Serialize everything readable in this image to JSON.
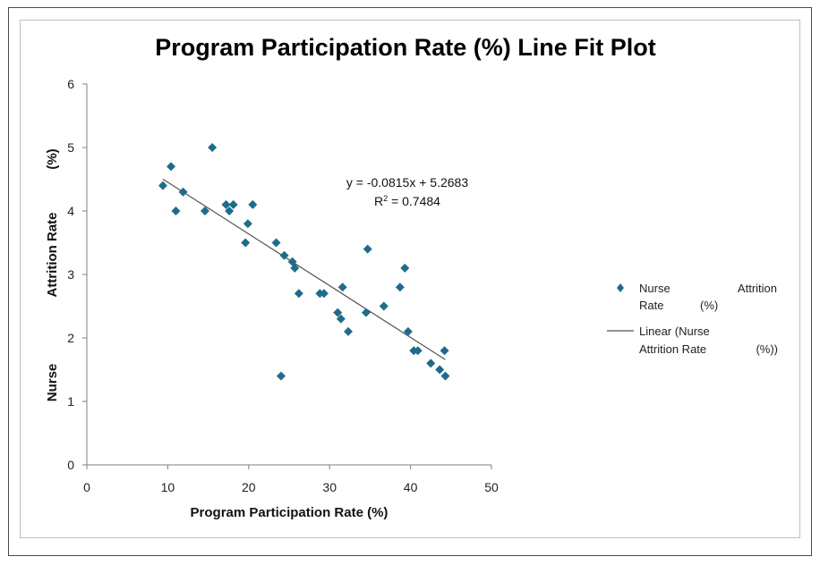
{
  "chart_data": {
    "type": "scatter",
    "title": "Program Participation Rate (%) Line Fit  Plot",
    "xlabel": "Program Participation Rate (%)",
    "ylabel_parts": [
      "Nurse",
      "Attrition Rate",
      "(%)"
    ],
    "xlim": [
      0,
      50
    ],
    "ylim": [
      0,
      6
    ],
    "x_ticks": [
      0,
      10,
      20,
      30,
      40,
      50
    ],
    "y_ticks": [
      0,
      1,
      2,
      3,
      4,
      5,
      6
    ],
    "grid": false,
    "legend_position": "right",
    "series": [
      {
        "name_parts": [
          "Nurse",
          "Attrition",
          "Rate",
          "(%)"
        ],
        "color": "#1f6b8c",
        "marker": "diamond",
        "points": [
          [
            9.4,
            4.4
          ],
          [
            10.4,
            4.7
          ],
          [
            11.0,
            4.0
          ],
          [
            11.9,
            4.3
          ],
          [
            14.6,
            4.0
          ],
          [
            15.5,
            5.0
          ],
          [
            17.2,
            4.1
          ],
          [
            17.6,
            4.0
          ],
          [
            18.1,
            4.1
          ],
          [
            19.6,
            3.5
          ],
          [
            19.9,
            3.8
          ],
          [
            20.5,
            4.1
          ],
          [
            23.4,
            3.5
          ],
          [
            24.0,
            1.4
          ],
          [
            24.4,
            3.3
          ],
          [
            25.4,
            3.2
          ],
          [
            25.7,
            3.1
          ],
          [
            26.2,
            2.7
          ],
          [
            28.8,
            2.7
          ],
          [
            29.3,
            2.7
          ],
          [
            31.0,
            2.4
          ],
          [
            31.4,
            2.3
          ],
          [
            31.6,
            2.8
          ],
          [
            32.3,
            2.1
          ],
          [
            34.5,
            2.4
          ],
          [
            34.7,
            3.4
          ],
          [
            36.7,
            2.5
          ],
          [
            38.7,
            2.8
          ],
          [
            39.3,
            3.1
          ],
          [
            39.7,
            2.1
          ],
          [
            40.4,
            1.8
          ],
          [
            40.9,
            1.8
          ],
          [
            42.5,
            1.6
          ],
          [
            43.6,
            1.5
          ],
          [
            44.2,
            1.8
          ],
          [
            44.3,
            1.4
          ]
        ]
      }
    ],
    "trendline": {
      "name_parts": [
        "Linear (Nurse",
        "Attrition Rate",
        "(%))"
      ],
      "slope": -0.0815,
      "intercept": 5.2683,
      "x_range": [
        9.4,
        44.3
      ],
      "color": "#555555",
      "equation": "y = -0.0815x + 5.2683",
      "r2_prefix": "R",
      "r2_sup": "2",
      "r2_value": " = 0.7484"
    }
  }
}
